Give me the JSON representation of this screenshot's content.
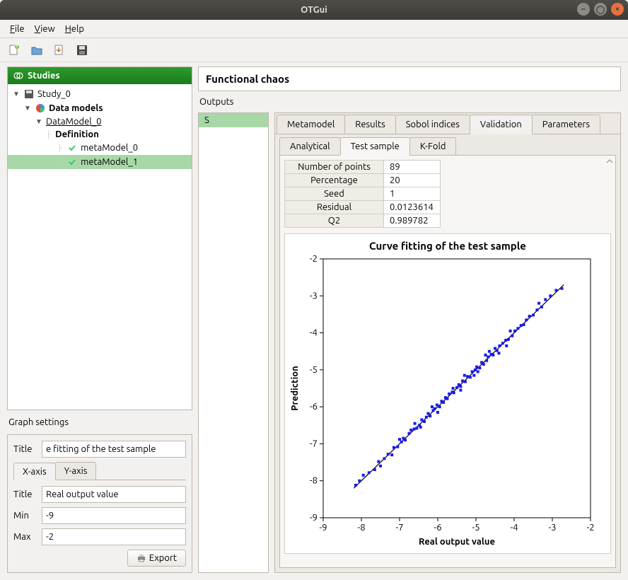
{
  "window": {
    "title": "OTGui"
  },
  "menubar": {
    "file": "File",
    "view": "View",
    "help": "Help"
  },
  "studies": {
    "header": "Studies",
    "tree": {
      "study": "Study_0",
      "data_models": "Data models",
      "data_model": "DataModel_0",
      "definition": "Definition",
      "meta0": "metaModel_0",
      "meta1": "metaModel_1"
    }
  },
  "graph_settings": {
    "label": "Graph settings",
    "title_label": "Title",
    "title_value": "e fitting of the test sample",
    "tabs": {
      "x": "X-axis",
      "y": "Y-axis"
    },
    "axis_title_label": "Title",
    "axis_title_value": "Real output value",
    "min_label": "Min",
    "min_value": "-9",
    "max_label": "Max",
    "max_value": "-2",
    "export": "Export"
  },
  "functional_chaos": {
    "header": "Functional chaos",
    "outputs_label": "Outputs",
    "output_item": "S",
    "main_tabs": [
      "Metamodel",
      "Results",
      "Sobol indices",
      "Validation",
      "Parameters"
    ],
    "main_tab_active": 3,
    "sub_tabs": [
      "Analytical",
      "Test sample",
      "K-Fold"
    ],
    "sub_tab_active": 1,
    "stats": [
      [
        "Number of points",
        "89"
      ],
      [
        "Percentage",
        "20"
      ],
      [
        "Seed",
        "1"
      ],
      [
        "Residual",
        "0.0123614"
      ],
      [
        "Q2",
        "0.989782"
      ]
    ]
  },
  "chart": {
    "title": "Curve fitting of the test sample",
    "xlabel": "Real output value",
    "ylabel": "Prediction",
    "xlim": [
      -9,
      -2
    ],
    "ylim": [
      -9,
      -2
    ],
    "ticks": [
      -9,
      -8,
      -7,
      -6,
      -5,
      -4,
      -3,
      -2
    ],
    "line_color": "#000000",
    "marker_color": "#1a1aee",
    "marker_size": 4,
    "background": "#ffffff",
    "grid_color": "#000000",
    "title_fontsize": 15,
    "label_fontsize": 13,
    "tick_fontsize": 11,
    "points": [
      [
        -8.15,
        -8.12
      ],
      [
        -8.05,
        -8.0
      ],
      [
        -7.95,
        -7.85
      ],
      [
        -7.8,
        -7.78
      ],
      [
        -7.65,
        -7.7
      ],
      [
        -7.55,
        -7.48
      ],
      [
        -7.4,
        -7.4
      ],
      [
        -7.3,
        -7.28
      ],
      [
        -7.15,
        -7.1
      ],
      [
        -7.05,
        -7.08
      ],
      [
        -6.95,
        -6.95
      ],
      [
        -6.9,
        -6.85
      ],
      [
        -6.85,
        -6.9
      ],
      [
        -6.75,
        -6.72
      ],
      [
        -6.7,
        -6.63
      ],
      [
        -6.62,
        -6.6
      ],
      [
        -6.55,
        -6.58
      ],
      [
        -6.48,
        -6.5
      ],
      [
        -6.42,
        -6.35
      ],
      [
        -6.35,
        -6.4
      ],
      [
        -6.3,
        -6.28
      ],
      [
        -6.25,
        -6.18
      ],
      [
        -6.2,
        -6.25
      ],
      [
        -6.12,
        -6.1
      ],
      [
        -6.08,
        -6.05
      ],
      [
        -6.02,
        -5.95
      ],
      [
        -5.95,
        -6.0
      ],
      [
        -5.9,
        -5.85
      ],
      [
        -5.85,
        -5.88
      ],
      [
        -5.8,
        -5.75
      ],
      [
        -5.75,
        -5.78
      ],
      [
        -5.7,
        -5.65
      ],
      [
        -5.62,
        -5.6
      ],
      [
        -5.58,
        -5.62
      ],
      [
        -5.5,
        -5.48
      ],
      [
        -5.45,
        -5.4
      ],
      [
        -5.4,
        -5.45
      ],
      [
        -5.35,
        -5.3
      ],
      [
        -5.28,
        -5.32
      ],
      [
        -5.22,
        -5.18
      ],
      [
        -5.15,
        -5.2
      ],
      [
        -5.1,
        -5.05
      ],
      [
        -5.02,
        -5.0
      ],
      [
        -4.98,
        -4.92
      ],
      [
        -4.9,
        -4.95
      ],
      [
        -4.85,
        -4.8
      ],
      [
        -4.8,
        -4.85
      ],
      [
        -4.72,
        -4.75
      ],
      [
        -4.68,
        -4.65
      ],
      [
        -4.6,
        -4.58
      ],
      [
        -4.55,
        -4.6
      ],
      [
        -4.5,
        -4.42
      ],
      [
        -4.45,
        -4.48
      ],
      [
        -4.38,
        -4.35
      ],
      [
        -4.3,
        -4.28
      ],
      [
        -4.22,
        -4.2
      ],
      [
        -4.15,
        -4.18
      ],
      [
        -4.1,
        -3.95
      ],
      [
        -4.05,
        -4.08
      ],
      [
        -3.98,
        -3.95
      ],
      [
        -3.9,
        -3.88
      ],
      [
        -3.82,
        -3.8
      ],
      [
        -3.75,
        -3.78
      ],
      [
        -3.68,
        -3.65
      ],
      [
        -3.6,
        -3.55
      ],
      [
        -3.5,
        -3.52
      ],
      [
        -3.4,
        -3.38
      ],
      [
        -3.28,
        -3.3
      ],
      [
        -3.18,
        -3.1
      ],
      [
        -3.05,
        -3.0
      ],
      [
        -2.9,
        -2.85
      ],
      [
        -2.75,
        -2.8
      ],
      [
        -6.0,
        -6.15
      ],
      [
        -5.6,
        -5.5
      ],
      [
        -5.3,
        -5.15
      ],
      [
        -4.95,
        -5.05
      ],
      [
        -4.65,
        -4.5
      ],
      [
        -4.4,
        -4.55
      ],
      [
        -6.45,
        -6.55
      ],
      [
        -7.0,
        -6.88
      ],
      [
        -7.2,
        -7.3
      ],
      [
        -5.05,
        -5.15
      ],
      [
        -4.2,
        -4.35
      ],
      [
        -3.35,
        -3.2
      ],
      [
        -6.15,
        -6.0
      ],
      [
        -5.4,
        -5.55
      ],
      [
        -4.75,
        -4.6
      ],
      [
        -6.6,
        -6.45
      ],
      [
        -7.5,
        -7.6
      ]
    ],
    "fit_line": [
      [
        -8.2,
        -8.2
      ],
      [
        -2.7,
        -2.7
      ]
    ]
  }
}
